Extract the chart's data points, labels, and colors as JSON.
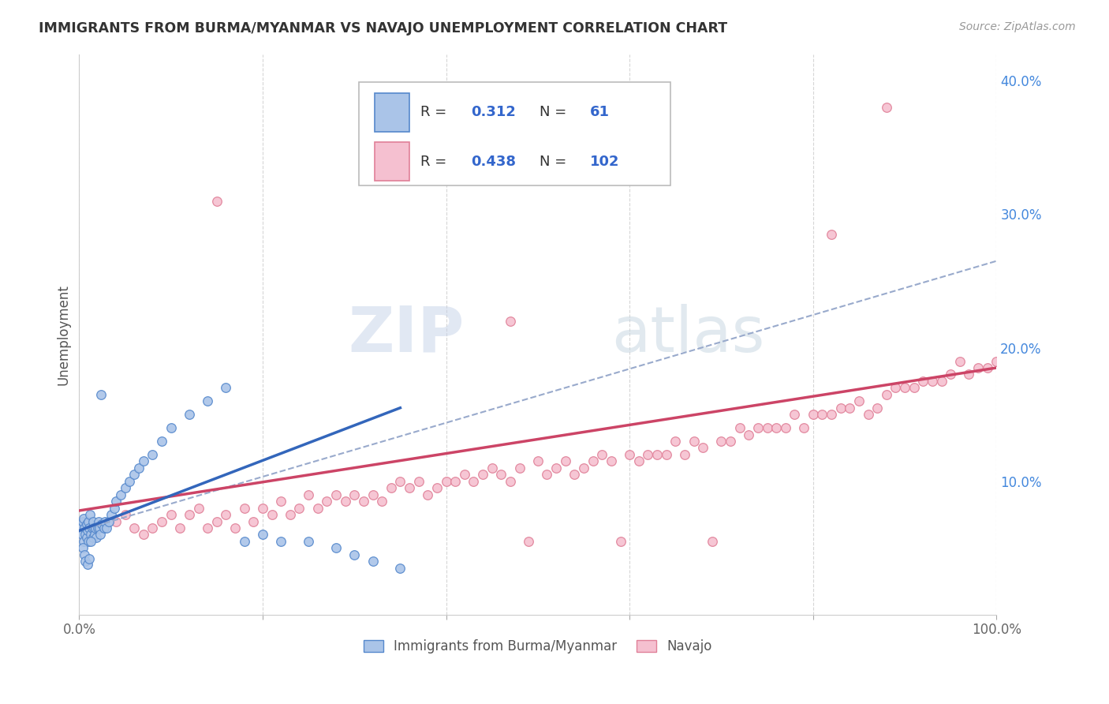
{
  "title": "IMMIGRANTS FROM BURMA/MYANMAR VS NAVAJO UNEMPLOYMENT CORRELATION CHART",
  "source": "Source: ZipAtlas.com",
  "ylabel": "Unemployment",
  "xlim": [
    0,
    1.0
  ],
  "ylim": [
    0,
    0.42
  ],
  "blue_color": "#aac4e8",
  "blue_edge_color": "#5588cc",
  "pink_color": "#f5c0d0",
  "pink_edge_color": "#e08098",
  "blue_line_color": "#3366bb",
  "pink_line_color": "#cc4466",
  "dashed_line_color": "#99aacc",
  "grid_color": "#cccccc",
  "watermark_zip_color": "#c8d4e8",
  "watermark_atlas_color": "#c8d4e0",
  "background_color": "#ffffff",
  "title_color": "#333333",
  "source_color": "#999999",
  "legend_box_color": "#dddddd",
  "legend_text_color": "#333333",
  "legend_val_color": "#3366cc",
  "blue_scatter_x": [
    0.002,
    0.003,
    0.004,
    0.005,
    0.005,
    0.006,
    0.007,
    0.008,
    0.008,
    0.009,
    0.01,
    0.01,
    0.011,
    0.012,
    0.013,
    0.014,
    0.015,
    0.015,
    0.016,
    0.017,
    0.018,
    0.019,
    0.02,
    0.021,
    0.022,
    0.023,
    0.025,
    0.027,
    0.028,
    0.03,
    0.032,
    0.035,
    0.038,
    0.04,
    0.045,
    0.05,
    0.055,
    0.06,
    0.065,
    0.07,
    0.08,
    0.09,
    0.1,
    0.12,
    0.14,
    0.16,
    0.18,
    0.2,
    0.22,
    0.25,
    0.28,
    0.3,
    0.32,
    0.35,
    0.004,
    0.006,
    0.007,
    0.009,
    0.011,
    0.013,
    0.024
  ],
  "blue_scatter_y": [
    0.065,
    0.06,
    0.07,
    0.072,
    0.055,
    0.065,
    0.06,
    0.068,
    0.058,
    0.063,
    0.07,
    0.055,
    0.065,
    0.075,
    0.06,
    0.065,
    0.07,
    0.058,
    0.065,
    0.06,
    0.065,
    0.058,
    0.065,
    0.07,
    0.065,
    0.06,
    0.068,
    0.065,
    0.07,
    0.065,
    0.07,
    0.075,
    0.08,
    0.085,
    0.09,
    0.095,
    0.1,
    0.105,
    0.11,
    0.115,
    0.12,
    0.13,
    0.14,
    0.15,
    0.16,
    0.17,
    0.055,
    0.06,
    0.055,
    0.055,
    0.05,
    0.045,
    0.04,
    0.035,
    0.05,
    0.045,
    0.04,
    0.038,
    0.042,
    0.055,
    0.165
  ],
  "pink_scatter_x": [
    0.02,
    0.04,
    0.05,
    0.06,
    0.07,
    0.08,
    0.09,
    0.1,
    0.11,
    0.12,
    0.13,
    0.14,
    0.15,
    0.16,
    0.17,
    0.18,
    0.19,
    0.2,
    0.21,
    0.22,
    0.23,
    0.24,
    0.25,
    0.26,
    0.27,
    0.28,
    0.29,
    0.3,
    0.31,
    0.32,
    0.33,
    0.34,
    0.35,
    0.36,
    0.37,
    0.38,
    0.39,
    0.4,
    0.41,
    0.42,
    0.43,
    0.44,
    0.45,
    0.46,
    0.47,
    0.48,
    0.49,
    0.5,
    0.51,
    0.52,
    0.53,
    0.54,
    0.55,
    0.56,
    0.57,
    0.58,
    0.59,
    0.6,
    0.61,
    0.62,
    0.63,
    0.64,
    0.65,
    0.66,
    0.67,
    0.68,
    0.69,
    0.7,
    0.71,
    0.72,
    0.73,
    0.74,
    0.75,
    0.76,
    0.77,
    0.78,
    0.79,
    0.8,
    0.81,
    0.82,
    0.83,
    0.84,
    0.85,
    0.86,
    0.87,
    0.88,
    0.89,
    0.9,
    0.91,
    0.92,
    0.93,
    0.94,
    0.95,
    0.96,
    0.97,
    0.98,
    0.99,
    1.0,
    0.47,
    0.15,
    0.82,
    0.88
  ],
  "pink_scatter_y": [
    0.065,
    0.07,
    0.075,
    0.065,
    0.06,
    0.065,
    0.07,
    0.075,
    0.065,
    0.075,
    0.08,
    0.065,
    0.07,
    0.075,
    0.065,
    0.08,
    0.07,
    0.08,
    0.075,
    0.085,
    0.075,
    0.08,
    0.09,
    0.08,
    0.085,
    0.09,
    0.085,
    0.09,
    0.085,
    0.09,
    0.085,
    0.095,
    0.1,
    0.095,
    0.1,
    0.09,
    0.095,
    0.1,
    0.1,
    0.105,
    0.1,
    0.105,
    0.11,
    0.105,
    0.1,
    0.11,
    0.055,
    0.115,
    0.105,
    0.11,
    0.115,
    0.105,
    0.11,
    0.115,
    0.12,
    0.115,
    0.055,
    0.12,
    0.115,
    0.12,
    0.12,
    0.12,
    0.13,
    0.12,
    0.13,
    0.125,
    0.055,
    0.13,
    0.13,
    0.14,
    0.135,
    0.14,
    0.14,
    0.14,
    0.14,
    0.15,
    0.14,
    0.15,
    0.15,
    0.15,
    0.155,
    0.155,
    0.16,
    0.15,
    0.155,
    0.165,
    0.17,
    0.17,
    0.17,
    0.175,
    0.175,
    0.175,
    0.18,
    0.19,
    0.18,
    0.185,
    0.185,
    0.19,
    0.22,
    0.31,
    0.285,
    0.38
  ],
  "pink_trendline_x0": 0.0,
  "pink_trendline_y0": 0.078,
  "pink_trendline_x1": 1.0,
  "pink_trendline_y1": 0.185,
  "blue_trendline_x0": 0.0,
  "blue_trendline_y0": 0.063,
  "blue_trendline_x1": 0.35,
  "blue_trendline_y1": 0.155,
  "dashed_trendline_x0": 0.0,
  "dashed_trendline_y0": 0.063,
  "dashed_trendline_x1": 1.0,
  "dashed_trendline_y1": 0.265
}
